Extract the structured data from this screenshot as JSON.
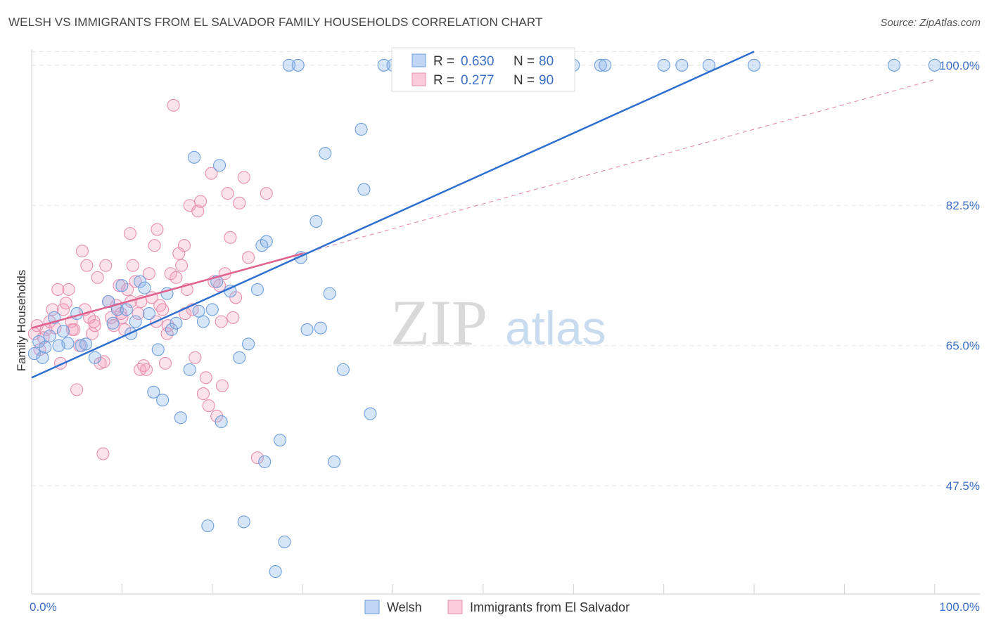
{
  "header": {
    "title": "WELSH VS IMMIGRANTS FROM EL SALVADOR FAMILY HOUSEHOLDS CORRELATION CHART",
    "source": "Source: ZipAtlas.com"
  },
  "watermark": {
    "zip": "ZIP",
    "atlas": "atlas"
  },
  "colors": {
    "welsh_fill": "rgba(140,180,235,0.35)",
    "welsh_stroke": "#6e9fdc",
    "welsh_line": "#2e6fd0",
    "salvador_fill": "rgba(245,160,190,0.30)",
    "salvador_stroke": "#e98fb0",
    "salvador_line": "#e0608e",
    "grid": "#e3e3e3",
    "axis_label": "#3b6fc6"
  },
  "legend_top": {
    "welsh": {
      "r_label": "R = ",
      "r_value": "0.630",
      "n_label": "N = ",
      "n_value": "80"
    },
    "salvador": {
      "r_label": "R = ",
      "r_value": "0.277",
      "n_label": "N = ",
      "n_value": "90"
    }
  },
  "legend_bottom": {
    "welsh": "Welsh",
    "salvador": "Immigrants from El Salvador"
  },
  "chart_data": {
    "type": "scatter",
    "title": "WELSH VS IMMIGRANTS FROM EL SALVADOR FAMILY HOUSEHOLDS CORRELATION CHART",
    "xlabel": "",
    "ylabel": "Family Households",
    "xlim": [
      0,
      105
    ],
    "ylim": [
      34,
      102
    ],
    "x_ticks": [
      {
        "value": 0,
        "label": "0.0%"
      },
      {
        "value": 100,
        "label": "100.0%"
      }
    ],
    "y_ticks": [
      {
        "value": 47.5,
        "label": "47.5%"
      },
      {
        "value": 65.0,
        "label": "65.0%"
      },
      {
        "value": 82.5,
        "label": "82.5%"
      },
      {
        "value": 100.0,
        "label": "100.0%"
      }
    ],
    "grid": true,
    "series": [
      {
        "name": "Welsh",
        "r": 0.63,
        "n": 80,
        "trend": {
          "x": [
            0,
            80
          ],
          "y": [
            61.0,
            101.7
          ]
        },
        "points": [
          [
            0.3,
            64.0
          ],
          [
            0.8,
            65.5
          ],
          [
            1.2,
            63.5
          ],
          [
            1.5,
            64.8
          ],
          [
            2.0,
            66.2
          ],
          [
            2.5,
            68.5
          ],
          [
            3.0,
            65.0
          ],
          [
            3.5,
            66.8
          ],
          [
            4.0,
            65.3
          ],
          [
            5.0,
            69.0
          ],
          [
            5.5,
            65.0
          ],
          [
            6.0,
            65.2
          ],
          [
            7.0,
            63.5
          ],
          [
            8.5,
            70.5
          ],
          [
            9.0,
            67.8
          ],
          [
            9.5,
            69.5
          ],
          [
            10.0,
            72.5
          ],
          [
            10.5,
            69.5
          ],
          [
            11.0,
            66.5
          ],
          [
            11.5,
            68.0
          ],
          [
            12.0,
            73.0
          ],
          [
            12.5,
            72.2
          ],
          [
            13.0,
            69.0
          ],
          [
            13.5,
            59.2
          ],
          [
            14.0,
            64.5
          ],
          [
            14.5,
            58.2
          ],
          [
            15.0,
            71.5
          ],
          [
            15.5,
            67.0
          ],
          [
            16.0,
            67.8
          ],
          [
            16.5,
            56.0
          ],
          [
            17.5,
            62.0
          ],
          [
            18.0,
            88.5
          ],
          [
            18.5,
            69.3
          ],
          [
            19.0,
            68.0
          ],
          [
            19.5,
            42.5
          ],
          [
            20.0,
            69.5
          ],
          [
            20.5,
            73.0
          ],
          [
            20.8,
            87.5
          ],
          [
            21.0,
            55.5
          ],
          [
            22.0,
            71.8
          ],
          [
            23.0,
            63.5
          ],
          [
            23.5,
            43.0
          ],
          [
            24.0,
            65.2
          ],
          [
            25.0,
            72.0
          ],
          [
            25.5,
            77.5
          ],
          [
            25.8,
            50.5
          ],
          [
            26.0,
            78.0
          ],
          [
            27.0,
            36.8
          ],
          [
            27.5,
            53.2
          ],
          [
            28.0,
            40.5
          ],
          [
            28.5,
            100.0
          ],
          [
            29.5,
            100.0
          ],
          [
            29.8,
            76.0
          ],
          [
            30.5,
            67.0
          ],
          [
            31.5,
            80.5
          ],
          [
            32.0,
            67.2
          ],
          [
            32.5,
            89.0
          ],
          [
            33.0,
            71.5
          ],
          [
            33.5,
            50.5
          ],
          [
            34.5,
            62.0
          ],
          [
            36.5,
            92.0
          ],
          [
            36.8,
            84.5
          ],
          [
            37.5,
            56.5
          ],
          [
            39.0,
            100.0
          ],
          [
            40.0,
            100.0
          ],
          [
            41.0,
            100.0
          ],
          [
            42.0,
            100.0
          ],
          [
            47.0,
            100.0
          ],
          [
            48.5,
            100.0
          ],
          [
            54.0,
            100.0
          ],
          [
            55.0,
            100.0
          ],
          [
            60.0,
            100.0
          ],
          [
            63.0,
            100.0
          ],
          [
            63.5,
            100.0
          ],
          [
            70.0,
            100.0
          ],
          [
            72.0,
            100.0
          ],
          [
            75.0,
            100.0
          ],
          [
            80.0,
            100.0
          ],
          [
            95.5,
            100.0
          ],
          [
            100.0,
            100.0
          ]
        ]
      },
      {
        "name": "Immigrants from El Salvador",
        "r": 0.277,
        "n": 90,
        "trend": {
          "x": [
            0,
            30
          ],
          "y": [
            67.2,
            76.5
          ]
        },
        "trend_extended": {
          "x": [
            30,
            100
          ],
          "y": [
            76.5,
            98.2
          ]
        },
        "points": [
          [
            0.3,
            66.5
          ],
          [
            0.6,
            67.5
          ],
          [
            0.9,
            64.5
          ],
          [
            1.3,
            66.0
          ],
          [
            1.6,
            67.0
          ],
          [
            2.0,
            68.0
          ],
          [
            2.3,
            69.5
          ],
          [
            2.6,
            67.2
          ],
          [
            2.9,
            72.0
          ],
          [
            3.2,
            62.8
          ],
          [
            3.5,
            69.5
          ],
          [
            3.8,
            70.3
          ],
          [
            4.1,
            72.0
          ],
          [
            4.4,
            68.0
          ],
          [
            4.7,
            67.0
          ],
          [
            5.0,
            59.5
          ],
          [
            5.3,
            65.0
          ],
          [
            5.6,
            76.8
          ],
          [
            5.9,
            69.5
          ],
          [
            6.1,
            75.0
          ],
          [
            6.4,
            68.5
          ],
          [
            6.7,
            66.5
          ],
          [
            7.0,
            67.5
          ],
          [
            7.3,
            73.5
          ],
          [
            7.6,
            62.8
          ],
          [
            7.9,
            51.5
          ],
          [
            8.2,
            75.0
          ],
          [
            8.5,
            70.5
          ],
          [
            8.8,
            68.5
          ],
          [
            9.1,
            67.5
          ],
          [
            9.4,
            70.0
          ],
          [
            9.7,
            72.5
          ],
          [
            10.0,
            68.5
          ],
          [
            10.3,
            67.0
          ],
          [
            10.6,
            72.0
          ],
          [
            10.9,
            79.0
          ],
          [
            11.2,
            75.0
          ],
          [
            11.5,
            73.0
          ],
          [
            11.8,
            69.0
          ],
          [
            12.1,
            70.5
          ],
          [
            12.4,
            62.5
          ],
          [
            12.7,
            62.0
          ],
          [
            13.0,
            74.0
          ],
          [
            13.3,
            71.0
          ],
          [
            13.6,
            77.5
          ],
          [
            13.9,
            79.5
          ],
          [
            14.2,
            70.0
          ],
          [
            14.5,
            69.5
          ],
          [
            14.8,
            62.8
          ],
          [
            15.1,
            67.5
          ],
          [
            15.4,
            74.0
          ],
          [
            15.7,
            95.0
          ],
          [
            16.0,
            73.5
          ],
          [
            16.3,
            76.5
          ],
          [
            16.6,
            75.0
          ],
          [
            16.9,
            77.5
          ],
          [
            17.2,
            72.0
          ],
          [
            17.5,
            82.5
          ],
          [
            17.8,
            69.5
          ],
          [
            18.1,
            63.5
          ],
          [
            18.4,
            81.8
          ],
          [
            18.7,
            83.0
          ],
          [
            19.0,
            59.0
          ],
          [
            19.3,
            61.0
          ],
          [
            19.6,
            57.5
          ],
          [
            19.9,
            86.5
          ],
          [
            20.2,
            73.0
          ],
          [
            20.5,
            56.2
          ],
          [
            20.8,
            72.5
          ],
          [
            21.1,
            60.0
          ],
          [
            21.4,
            74.0
          ],
          [
            21.7,
            84.0
          ],
          [
            22.0,
            78.5
          ],
          [
            22.3,
            68.5
          ],
          [
            22.6,
            71.0
          ],
          [
            23.0,
            82.8
          ],
          [
            23.5,
            86.0
          ],
          [
            24.0,
            76.0
          ],
          [
            25.0,
            51.0
          ],
          [
            26.0,
            84.0
          ],
          [
            4.5,
            67.0
          ],
          [
            6.9,
            68.0
          ],
          [
            8.0,
            63.0
          ],
          [
            9.9,
            69.0
          ],
          [
            11.0,
            70.5
          ],
          [
            12.0,
            62.0
          ],
          [
            13.8,
            68.0
          ],
          [
            15.0,
            66.5
          ],
          [
            17.0,
            69.0
          ],
          [
            21.0,
            68.0
          ]
        ]
      }
    ]
  }
}
